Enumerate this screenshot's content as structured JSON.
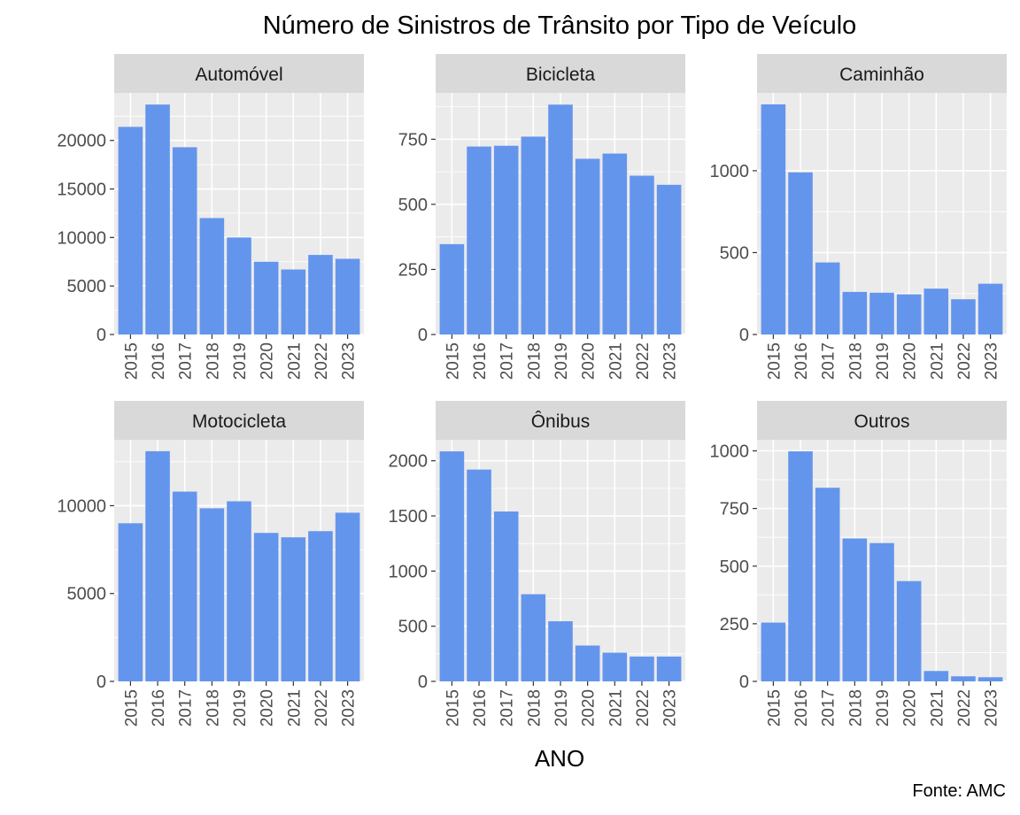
{
  "title": "Número de Sinistros de Trânsito por Tipo de Veículo",
  "xlabel": "ANO",
  "caption": "Fonte: AMC",
  "colors": {
    "bar": "#6495ED",
    "panel_bg": "#EBEBEB",
    "grid": "#FFFFFF",
    "strip_bg": "#D9D9D9",
    "text": "#000000",
    "tick_text": "#4D4D4D"
  },
  "chart_data": {
    "type": "bar",
    "facets_layout": {
      "rows": 2,
      "cols": 3,
      "scales": "free_y"
    },
    "categories": [
      "2015",
      "2016",
      "2017",
      "2018",
      "2019",
      "2020",
      "2021",
      "2022",
      "2023"
    ],
    "facets": [
      {
        "label": "Automóvel",
        "values": [
          21400,
          23700,
          19300,
          12000,
          10000,
          7500,
          6700,
          8200,
          7800
        ],
        "yticks": [
          0,
          5000,
          10000,
          15000,
          20000
        ],
        "ylim": [
          0,
          24900
        ]
      },
      {
        "label": "Bicicleta",
        "values": [
          347,
          722,
          725,
          760,
          883,
          675,
          695,
          610,
          575
        ],
        "yticks": [
          0,
          250,
          500,
          750
        ],
        "ylim": [
          0,
          928
        ]
      },
      {
        "label": "Caminhão",
        "values": [
          1405,
          990,
          440,
          260,
          255,
          245,
          280,
          215,
          310
        ],
        "yticks": [
          0,
          500,
          1000
        ],
        "ylim": [
          0,
          1475
        ]
      },
      {
        "label": "Motocicleta",
        "values": [
          9000,
          13100,
          10800,
          9850,
          10250,
          8450,
          8200,
          8550,
          9600
        ],
        "yticks": [
          0,
          5000,
          10000
        ],
        "ylim": [
          0,
          13750
        ]
      },
      {
        "label": "Ônibus",
        "values": [
          2085,
          1920,
          1540,
          790,
          545,
          325,
          260,
          225,
          225
        ],
        "yticks": [
          0,
          500,
          1000,
          1500,
          2000
        ],
        "ylim": [
          0,
          2190
        ]
      },
      {
        "label": "Outros",
        "values": [
          255,
          998,
          840,
          620,
          600,
          435,
          45,
          22,
          18
        ],
        "yticks": [
          0,
          250,
          500,
          750,
          1000
        ],
        "ylim": [
          0,
          1048
        ]
      }
    ]
  }
}
